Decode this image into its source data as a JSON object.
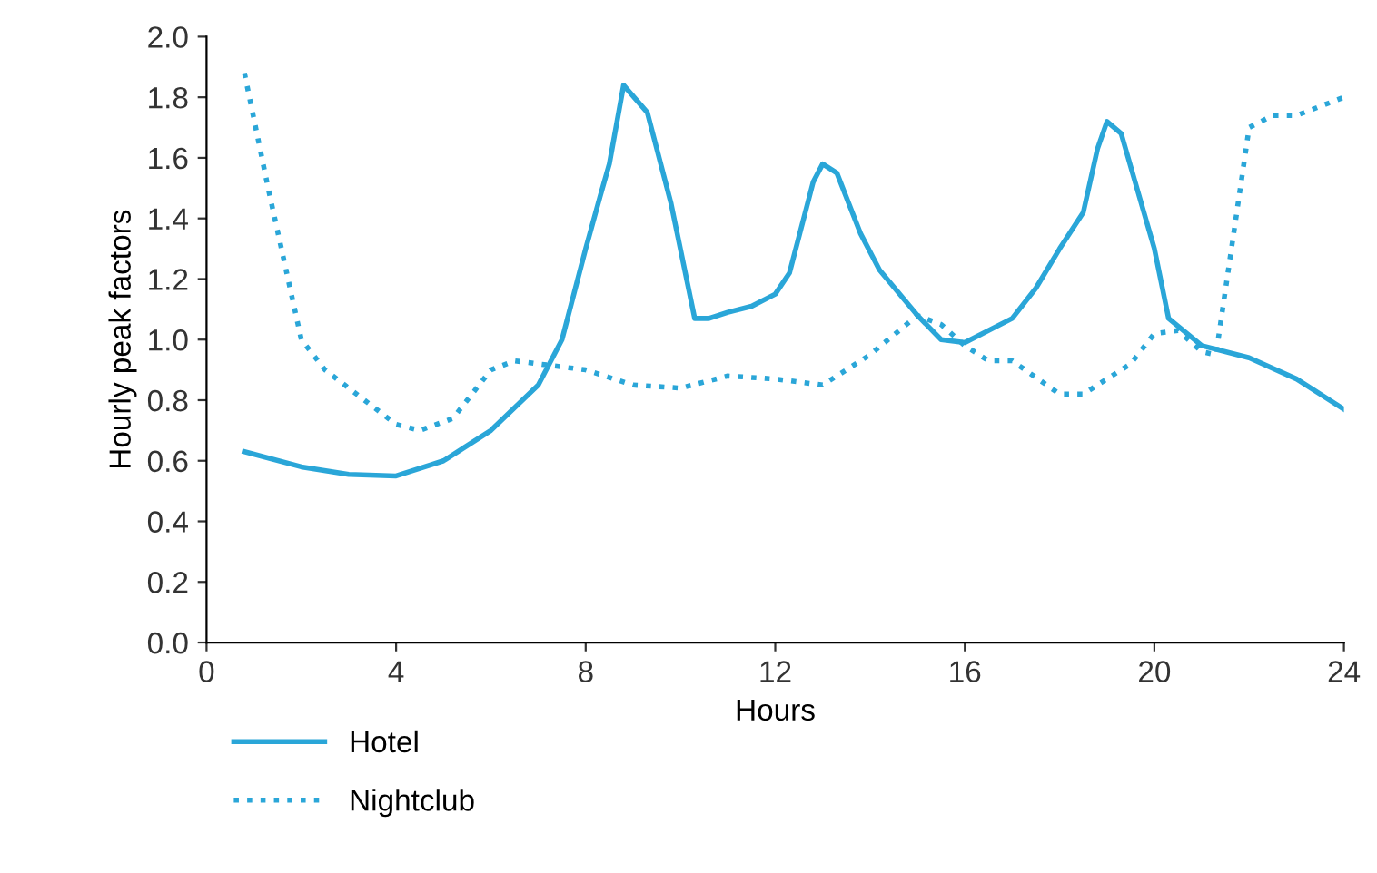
{
  "chart_data": {
    "type": "line",
    "xlabel": "Hours",
    "ylabel": "Hourly peak factors",
    "xlim": [
      0,
      24
    ],
    "ylim": [
      0,
      2
    ],
    "xticks": [
      0,
      4,
      8,
      12,
      16,
      20,
      24
    ],
    "yticks": [
      {
        "value": 0,
        "label": "0.0"
      },
      {
        "value": 0.2,
        "label": "0.2"
      },
      {
        "value": 0.4,
        "label": "0.4"
      },
      {
        "value": 0.6,
        "label": "0.6"
      },
      {
        "value": 0.8,
        "label": "0.8"
      },
      {
        "value": 1,
        "label": "1.0"
      },
      {
        "value": 1.2,
        "label": "1.2"
      },
      {
        "value": 1.4,
        "label": "1.4"
      },
      {
        "value": 1.6,
        "label": "1.6"
      },
      {
        "value": 1.8,
        "label": "1.8"
      },
      {
        "value": 2,
        "label": "2.0"
      }
    ],
    "grid": false,
    "legend": "bottom left",
    "marker": "none",
    "series": [
      {
        "name": "Hotel",
        "color": "#2aa6d8",
        "line_style": "solid",
        "x": [
          0.8,
          2,
          3,
          4,
          5,
          6,
          7,
          7.5,
          8,
          8.3,
          8.5,
          8.8,
          9.3,
          9.8,
          10.3,
          10.6,
          11,
          11.5,
          12,
          12.3,
          12.8,
          13,
          13.3,
          13.8,
          14.2,
          15,
          15.5,
          16,
          17,
          17.5,
          18,
          18.5,
          18.8,
          19,
          19.3,
          20,
          20.3,
          21,
          22,
          23,
          24
        ],
        "values": [
          0.63,
          0.58,
          0.555,
          0.55,
          0.6,
          0.7,
          0.85,
          1.0,
          1.3,
          1.47,
          1.58,
          1.84,
          1.75,
          1.45,
          1.07,
          1.07,
          1.09,
          1.11,
          1.15,
          1.22,
          1.52,
          1.58,
          1.55,
          1.35,
          1.23,
          1.08,
          1.0,
          0.99,
          1.07,
          1.17,
          1.3,
          1.42,
          1.63,
          1.72,
          1.68,
          1.3,
          1.07,
          0.98,
          0.94,
          0.87,
          0.77
        ]
      },
      {
        "name": "Nightclub",
        "color": "#2aa6d8",
        "line_style": "dotted",
        "x": [
          0.8,
          1.3,
          2,
          2.5,
          3,
          4,
          4.5,
          5.2,
          6,
          6.5,
          7,
          8,
          9,
          10,
          11,
          12,
          13,
          14,
          15,
          15.5,
          16,
          16.5,
          17,
          18,
          18.5,
          19.5,
          20,
          20.5,
          21,
          21.3,
          22,
          22.5,
          23,
          24
        ],
        "values": [
          1.88,
          1.5,
          1.0,
          0.9,
          0.84,
          0.72,
          0.7,
          0.74,
          0.9,
          0.93,
          0.92,
          0.9,
          0.85,
          0.84,
          0.88,
          0.87,
          0.85,
          0.95,
          1.08,
          1.05,
          0.98,
          0.93,
          0.93,
          0.82,
          0.82,
          0.92,
          1.02,
          1.03,
          0.96,
          0.95,
          1.7,
          1.74,
          1.74,
          1.8
        ]
      }
    ]
  }
}
